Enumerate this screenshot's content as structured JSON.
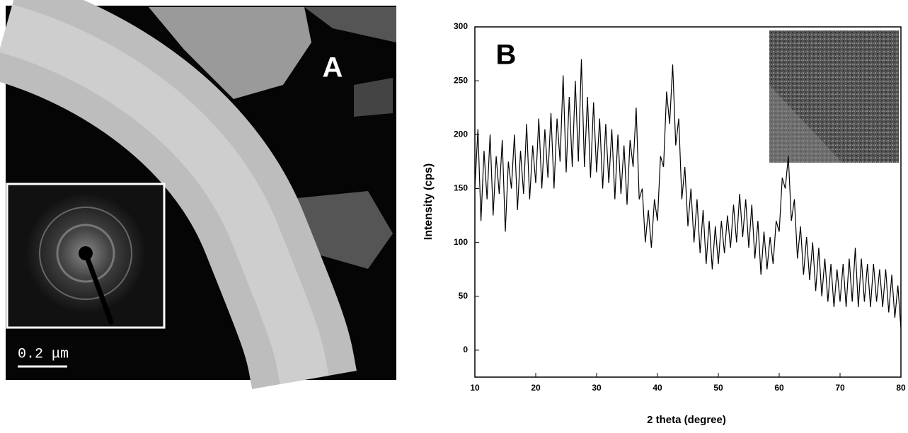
{
  "panel_a": {
    "label": "A",
    "scale_bar": "0.2 μm"
  },
  "chart_data": {
    "type": "line",
    "title": "B",
    "x_label": "2 theta (degree)",
    "y_label": "Intensity (cps)",
    "color": "#000000",
    "xlim": [
      10,
      80
    ],
    "xticks": [
      10,
      20,
      30,
      40,
      50,
      60,
      70,
      80
    ],
    "ylim": [
      -25,
      300
    ],
    "yticks": [
      0,
      50,
      100,
      150,
      200,
      250,
      300
    ],
    "x": [
      10,
      10.5,
      11,
      11.5,
      12,
      12.5,
      13,
      13.5,
      14,
      14.5,
      15,
      15.5,
      16,
      16.5,
      17,
      17.5,
      18,
      18.5,
      19,
      19.5,
      20,
      20.5,
      21,
      21.5,
      22,
      22.5,
      23,
      23.5,
      24,
      24.5,
      25,
      25.5,
      26,
      26.5,
      27,
      27.5,
      28,
      28.5,
      29,
      29.5,
      30,
      30.5,
      31,
      31.5,
      32,
      32.5,
      33,
      33.5,
      34,
      34.5,
      35,
      35.5,
      36,
      36.5,
      37,
      37.5,
      38,
      38.5,
      39,
      39.5,
      40,
      40.5,
      41,
      41.5,
      42,
      42.5,
      43,
      43.5,
      44,
      44.5,
      45,
      45.5,
      46,
      46.5,
      47,
      47.5,
      48,
      48.5,
      49,
      49.5,
      50,
      50.5,
      51,
      51.5,
      52,
      52.5,
      53,
      53.5,
      54,
      54.5,
      55,
      55.5,
      56,
      56.5,
      57,
      57.5,
      58,
      58.5,
      59,
      59.5,
      60,
      60.5,
      61,
      61.5,
      62,
      62.5,
      63,
      63.5,
      64,
      64.5,
      65,
      65.5,
      66,
      66.5,
      67,
      67.5,
      68,
      68.5,
      69,
      69.5,
      70,
      70.5,
      71,
      71.5,
      72,
      72.5,
      73,
      73.5,
      74,
      74.5,
      75,
      75.5,
      76,
      76.5,
      77,
      77.5,
      78,
      78.5,
      79,
      79.5,
      80
    ],
    "values": [
      150,
      205,
      120,
      185,
      140,
      200,
      125,
      180,
      145,
      195,
      110,
      175,
      150,
      200,
      130,
      185,
      145,
      210,
      140,
      190,
      155,
      215,
      150,
      205,
      160,
      220,
      150,
      215,
      175,
      255,
      165,
      235,
      170,
      250,
      175,
      270,
      170,
      235,
      160,
      230,
      165,
      215,
      150,
      210,
      155,
      205,
      140,
      200,
      145,
      190,
      135,
      195,
      170,
      225,
      140,
      150,
      100,
      130,
      95,
      140,
      120,
      180,
      170,
      240,
      210,
      265,
      190,
      215,
      140,
      170,
      115,
      150,
      100,
      140,
      90,
      130,
      80,
      120,
      75,
      115,
      80,
      120,
      90,
      125,
      95,
      135,
      100,
      145,
      105,
      140,
      95,
      135,
      85,
      120,
      70,
      110,
      75,
      105,
      80,
      120,
      110,
      160,
      150,
      180,
      120,
      140,
      85,
      115,
      70,
      105,
      65,
      100,
      55,
      95,
      50,
      85,
      45,
      80,
      40,
      75,
      45,
      80,
      40,
      85,
      45,
      95,
      40,
      85,
      45,
      80,
      40,
      80,
      45,
      75,
      40,
      75,
      35,
      70,
      30,
      60,
      20
    ]
  }
}
